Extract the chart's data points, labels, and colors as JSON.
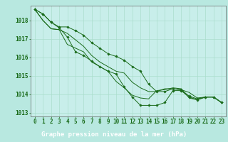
{
  "title": "Graphe pression niveau de la mer (hPa)",
  "bg_color": "#b8e8e0",
  "plot_bg_color": "#c8eeea",
  "line_color": "#1a6b1a",
  "grid_color": "#aaddcc",
  "footer_bg": "#1a6b1a",
  "footer_text_color": "#ffffff",
  "xlim": [
    -0.5,
    23.5
  ],
  "ylim": [
    1012.8,
    1018.8
  ],
  "yticks": [
    1013,
    1014,
    1015,
    1016,
    1017,
    1018
  ],
  "xticks": [
    0,
    1,
    2,
    3,
    4,
    5,
    6,
    7,
    8,
    9,
    10,
    11,
    12,
    13,
    14,
    15,
    16,
    17,
    18,
    19,
    20,
    21,
    22,
    23
  ],
  "series": [
    [
      1018.6,
      1018.35,
      1017.9,
      1017.6,
      1017.1,
      1016.3,
      1016.1,
      1015.8,
      1015.5,
      1015.25,
      1015.1,
      1014.4,
      1013.85,
      1013.4,
      1013.4,
      1013.4,
      1013.55,
      1014.2,
      1014.2,
      1013.85,
      1013.7,
      1013.85,
      1013.85,
      1013.55
    ],
    [
      1018.6,
      1018.0,
      1017.55,
      1017.5,
      1016.7,
      1016.5,
      1016.3,
      1015.75,
      1015.5,
      1015.25,
      1014.7,
      1014.35,
      1013.95,
      1013.8,
      1013.75,
      1014.2,
      1014.25,
      1014.35,
      1014.3,
      1013.8,
      1013.7,
      1013.85,
      1013.85,
      1013.55
    ],
    [
      1018.6,
      1018.0,
      1017.55,
      1017.5,
      1017.3,
      1016.95,
      1016.6,
      1016.1,
      1015.75,
      1015.5,
      1015.25,
      1015.15,
      1014.65,
      1014.35,
      1014.15,
      1014.15,
      1014.3,
      1014.3,
      1014.25,
      1014.1,
      1013.8,
      1013.85,
      1013.85,
      1013.55
    ],
    [
      1018.6,
      1018.35,
      1017.9,
      1017.65,
      1017.65,
      1017.45,
      1017.2,
      1016.8,
      1016.5,
      1016.2,
      1016.05,
      1015.85,
      1015.5,
      1015.25,
      1014.55,
      1014.15,
      1014.15,
      1014.3,
      1014.25,
      1013.9,
      1013.75,
      1013.85,
      1013.85,
      1013.55
    ]
  ],
  "marker_series": [
    0,
    3
  ],
  "no_marker_series": [
    1,
    2
  ],
  "marker": "D",
  "markersize": 1.8,
  "linewidth": 0.7,
  "tick_fontsize": 5.5,
  "xlabel_fontsize": 6.5
}
